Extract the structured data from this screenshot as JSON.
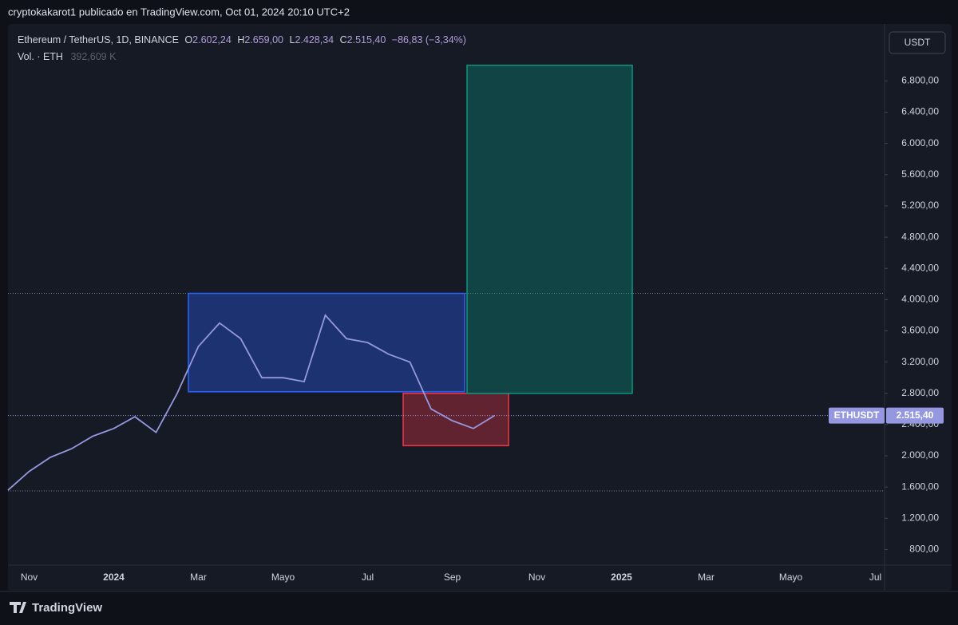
{
  "header": {
    "publisher": "cryptokakarot1 publicado en TradingView.com, Oct 01, 2024 20:10 UTC+2"
  },
  "legend": {
    "symbol": "Ethereum / TetherUS, 1D, BINANCE",
    "o_label": "O",
    "o": "2.602,24",
    "h_label": "H",
    "h": "2.659,00",
    "l_label": "L",
    "l": "2.428,34",
    "c_label": "C",
    "c": "2.515,40",
    "change": "−86,83 (−3,34%)",
    "volume_label": "Vol. · ETH",
    "volume": "392,609 K"
  },
  "currency_button": "USDT",
  "chart_data": {
    "type": "line",
    "categories": [
      null,
      "Nov",
      null,
      null,
      null,
      "2024",
      null,
      null,
      null,
      "Mar",
      null,
      null,
      null,
      "Mayo",
      null,
      null,
      null,
      "Jul",
      null,
      null,
      null,
      "Sep",
      null,
      null,
      null,
      "Nov",
      null,
      null,
      null,
      "2025",
      null,
      null,
      null,
      "Mar",
      null,
      null,
      null,
      "Mayo",
      null,
      null,
      null,
      "Jul"
    ],
    "series": [
      {
        "name": "ETHUSDT",
        "color": "#9598e0",
        "values": [
          1560,
          1800,
          1980,
          2090,
          2250,
          2350,
          2500,
          2300,
          2800,
          3400,
          3700,
          3500,
          3000,
          3000,
          2950,
          3800,
          3500,
          3450,
          3300,
          3200,
          2600,
          2450,
          2350,
          2515.4,
          null,
          null,
          null,
          null,
          null,
          null,
          null,
          null,
          null,
          null,
          null,
          null,
          null,
          null,
          null,
          null,
          null,
          null
        ],
        "last_value_label": "2.515,40"
      }
    ],
    "ylim": [
      600,
      7530
    ],
    "yticks": [
      {
        "value": 800,
        "label": "800,00"
      },
      {
        "value": 1200,
        "label": "1.200,00"
      },
      {
        "value": 1600,
        "label": "1.600,00"
      },
      {
        "value": 2000,
        "label": "2.000,00"
      },
      {
        "value": 2400,
        "label": "2.400,00"
      },
      {
        "value": 2800,
        "label": "2.800,00"
      },
      {
        "value": 3200,
        "label": "3.200,00"
      },
      {
        "value": 3600,
        "label": "3.600,00"
      },
      {
        "value": 4000,
        "label": "4.000,00"
      },
      {
        "value": 4400,
        "label": "4.400,00"
      },
      {
        "value": 4800,
        "label": "4.800,00"
      },
      {
        "value": 5200,
        "label": "5.200,00"
      },
      {
        "value": 5600,
        "label": "5.600,00"
      },
      {
        "value": 6000,
        "label": "6.000,00"
      },
      {
        "value": 6400,
        "label": "6.400,00"
      },
      {
        "value": 6800,
        "label": "6.800,00"
      }
    ],
    "zones": [
      {
        "color": "#2962ff",
        "range": [
          2820,
          4080
        ]
      },
      {
        "color": "#f23645",
        "range": [
          2130,
          2800
        ]
      },
      {
        "color": "#089981",
        "range": [
          2800,
          7000
        ]
      }
    ],
    "hlines": [
      4080,
      1550
    ]
  },
  "footer": {
    "brand": "TradingView"
  }
}
